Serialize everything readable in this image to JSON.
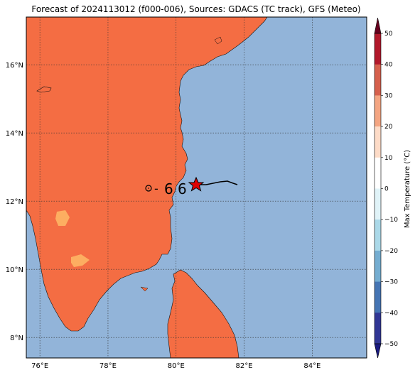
{
  "title": "Forecast of 2024113012 (f000-006), Sources: GDACS (TC track), GFS (Meteo)",
  "map": {
    "lon_range": [
      75.6,
      85.6
    ],
    "lat_range": [
      7.4,
      17.4
    ],
    "x_ticks": [
      "76°E",
      "78°E",
      "80°E",
      "82°E",
      "84°E"
    ],
    "y_ticks": [
      "8°N",
      "10°N",
      "12°N",
      "14°N",
      "16°N"
    ],
    "gridlines": true,
    "land_color": "#f46d43",
    "ocean_color": "#92b4d9",
    "warm_patch_color": "#fdae61"
  },
  "track": {
    "legend_symbols": [
      "o",
      "-",
      "6",
      "6"
    ],
    "current_position_marker": "red-star"
  },
  "colorbar": {
    "label": "Max Temperature (°C)",
    "ticks": [
      "50",
      "40",
      "30",
      "20",
      "10",
      "0",
      "−10",
      "−20",
      "−30",
      "−40",
      "−50"
    ],
    "colors": [
      "#67001f",
      "#b2182b",
      "#d6604d",
      "#f4a582",
      "#fddbc7",
      "#ffffff",
      "#e0f3f8",
      "#abd9e9",
      "#74add1",
      "#4575b4",
      "#313695",
      "#1a1a80"
    ]
  }
}
